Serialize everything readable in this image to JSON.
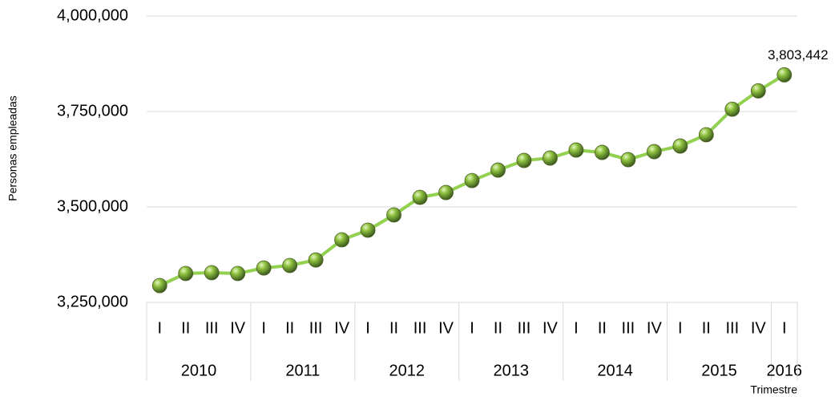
{
  "chart_data": {
    "type": "line",
    "y_axis_label": "Personas empleadas",
    "x_axis_label": "Trimestre",
    "annotation": "3,803,442",
    "groups": [
      {
        "label": "2010",
        "categories": [
          "I",
          "II",
          "III",
          "IV"
        ]
      },
      {
        "label": "2011",
        "categories": [
          "I",
          "II",
          "III",
          "IV"
        ]
      },
      {
        "label": "2012",
        "categories": [
          "I",
          "II",
          "III",
          "IV"
        ]
      },
      {
        "label": "2013",
        "categories": [
          "I",
          "II",
          "III",
          "IV"
        ]
      },
      {
        "label": "2014",
        "categories": [
          "I",
          "II",
          "III",
          "IV"
        ]
      },
      {
        "label": "2015",
        "categories": [
          "I",
          "II",
          "III",
          "IV"
        ]
      },
      {
        "label": "2016",
        "categories": [
          "I"
        ]
      }
    ],
    "values": [
      3294000,
      3325600,
      3327700,
      3325600,
      3340000,
      3346600,
      3361000,
      3413800,
      3439000,
      3479000,
      3525000,
      3537700,
      3569000,
      3596500,
      3621700,
      3628000,
      3649000,
      3642700,
      3623800,
      3644800,
      3659500,
      3689000,
      3756000,
      3804000,
      3846000
    ],
    "color": "#92d050",
    "ylim": [
      3250000,
      4000000
    ],
    "yticks": [
      {
        "value": 3250000,
        "label": "3,250,000"
      },
      {
        "value": 3500000,
        "label": "3,500,000"
      },
      {
        "value": 3750000,
        "label": "3,750,000"
      },
      {
        "value": 4000000,
        "label": "4,000,000"
      }
    ],
    "grid": true
  }
}
